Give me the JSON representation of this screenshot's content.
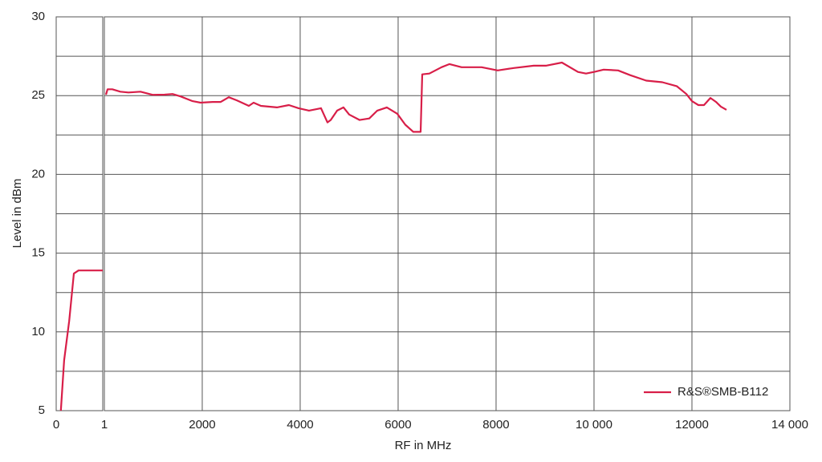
{
  "chart_data": {
    "type": "line",
    "x_label": "RF in MHz",
    "y_label": "Level in dBm",
    "ylim": [
      5,
      30
    ],
    "yticks": [
      5,
      10,
      15,
      20,
      25,
      30
    ],
    "yminor": [
      7.5,
      12.5,
      17.5,
      22.5,
      27.5
    ],
    "grid": true,
    "legend_position": "lower right",
    "series": [
      {
        "name": "R&S®SMB-B112",
        "color": "#d81e48"
      }
    ],
    "panels": [
      {
        "xlim": [
          0,
          1
        ],
        "xticks": [
          0,
          1
        ],
        "x": [
          0.1,
          0.17,
          0.28,
          0.38,
          0.48,
          1
        ],
        "values": [
          5,
          8.2,
          10.7,
          13.7,
          13.9,
          13.9
        ]
      },
      {
        "xlim": [
          1,
          14000
        ],
        "xticks": [
          2000,
          4000,
          6000,
          8000,
          {
            "value": 10000,
            "label": "10 000"
          },
          12000,
          {
            "value": 14000,
            "label": "14 000"
          }
        ],
        "x": [
          33,
          66,
          164,
          328,
          492,
          738,
          984,
          1230,
          1393,
          1557,
          1803,
          1967,
          2213,
          2377,
          2541,
          2705,
          2951,
          3049,
          3197,
          3525,
          3770,
          3967,
          4180,
          4426,
          4557,
          4623,
          4754,
          4885,
          5000,
          5213,
          5410,
          5574,
          5770,
          5983,
          6147,
          6311,
          6459,
          6492,
          6639,
          6885,
          7049,
          7295,
          7541,
          7705,
          8033,
          8361,
          8770,
          9016,
          9344,
          9672,
          9836,
          10000,
          10197,
          10492,
          10738,
          11066,
          11393,
          11689,
          11885,
          12000,
          12131,
          12246,
          12377,
          12492,
          12590,
          12705
        ],
        "values": [
          25.06,
          25.4,
          25.4,
          25.25,
          25.2,
          25.25,
          25.05,
          25.06,
          25.1,
          24.95,
          24.65,
          24.55,
          24.6,
          24.6,
          24.9,
          24.7,
          24.35,
          24.55,
          24.35,
          24.25,
          24.4,
          24.2,
          24.05,
          24.2,
          23.3,
          23.45,
          24.05,
          24.25,
          23.8,
          23.45,
          23.55,
          24.05,
          24.25,
          23.85,
          23.15,
          22.7,
          22.7,
          26.35,
          26.4,
          26.8,
          27.0,
          26.8,
          26.8,
          26.8,
          26.6,
          26.75,
          26.9,
          26.9,
          27.1,
          26.5,
          26.4,
          26.5,
          26.65,
          26.6,
          26.3,
          25.95,
          25.85,
          25.6,
          25.1,
          24.65,
          24.4,
          24.4,
          24.85,
          24.6,
          24.3,
          24.1
        ]
      }
    ]
  }
}
